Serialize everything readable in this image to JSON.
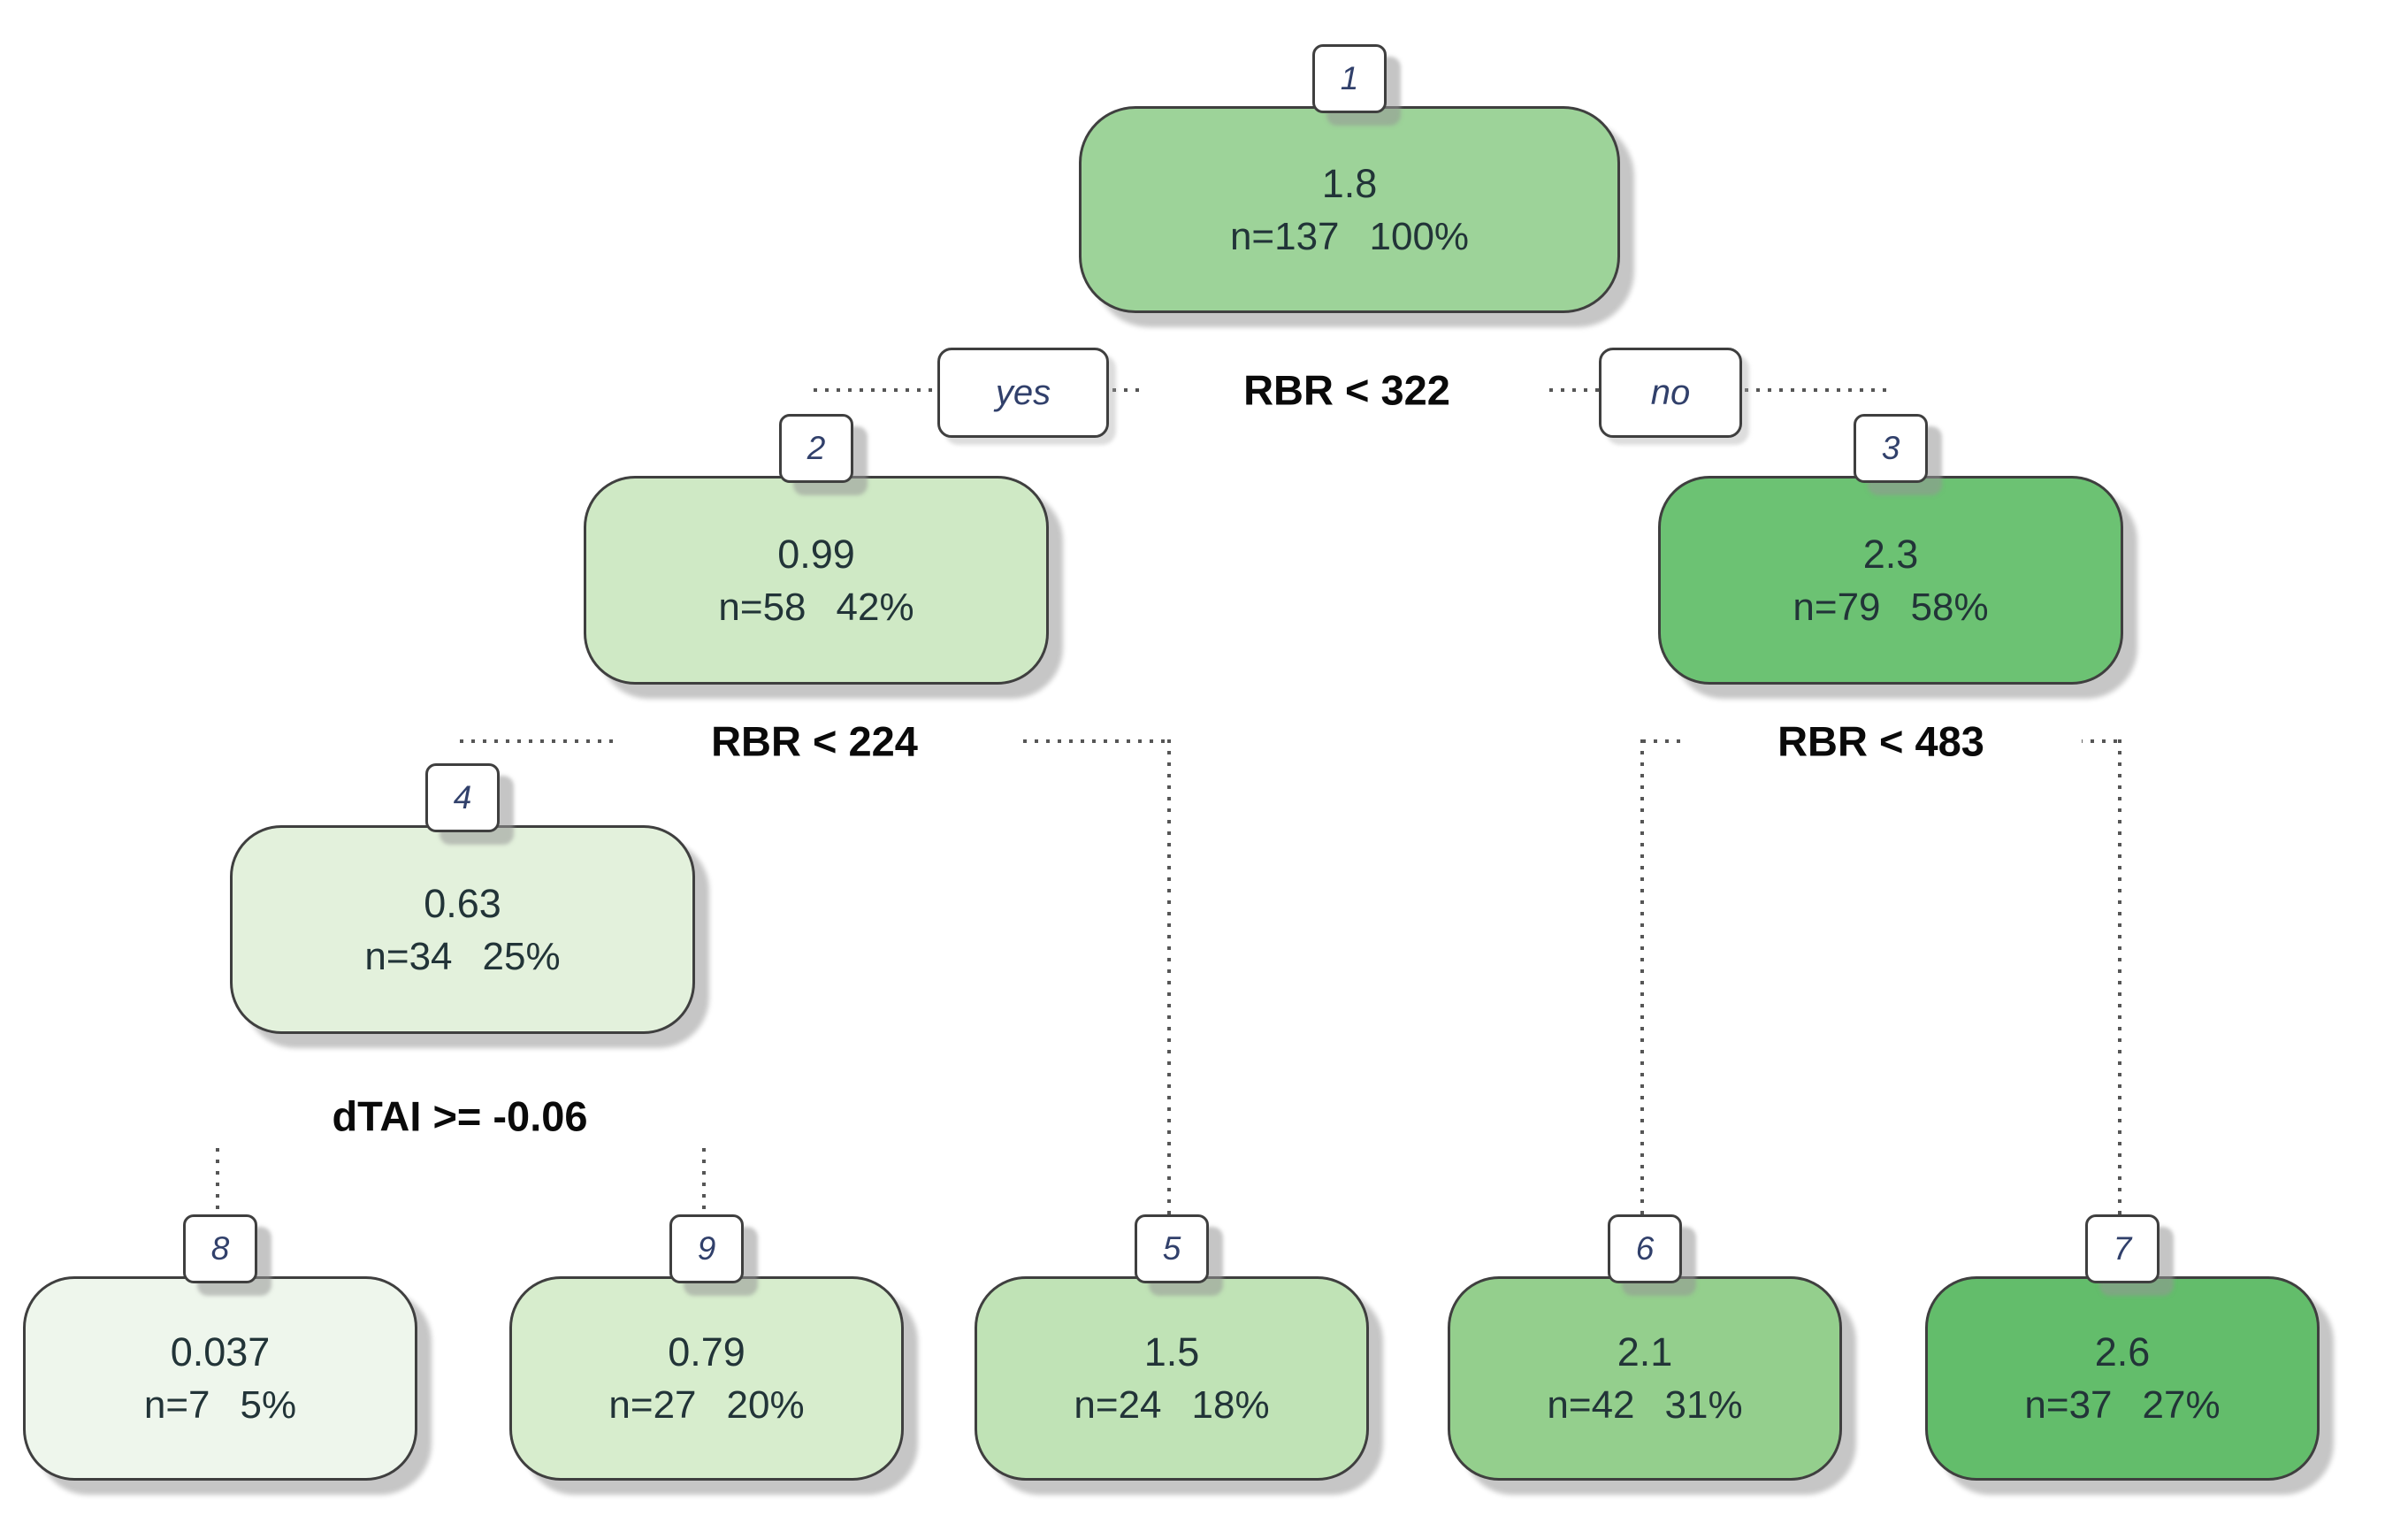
{
  "figure": {
    "type": "regression-tree-plot",
    "background": "#ffffff"
  },
  "branch_labels": {
    "yes": "yes",
    "no": "no"
  },
  "splits": {
    "root": "RBR < 322",
    "left": "RBR < 224",
    "right": "RBR < 483",
    "left_left": "dTAI >= -0.06"
  },
  "structure": {
    "1": {
      "split": "RBR < 322",
      "yes_child": "2",
      "no_child": "3"
    },
    "2": {
      "split": "RBR < 224",
      "yes_child": "4",
      "no_child": "5"
    },
    "3": {
      "split": "RBR < 483",
      "yes_child": "6",
      "no_child": "7"
    },
    "4": {
      "split": "dTAI >= -0.06",
      "yes_child": "8",
      "no_child": "9"
    }
  },
  "nodes": {
    "n1": {
      "id": "1",
      "value": "1.8",
      "n": "n=137",
      "pct": "100%",
      "color": "#9dd399"
    },
    "n2": {
      "id": "2",
      "value": "0.99",
      "n": "n=58",
      "pct": "42%",
      "color": "#cfe9c5"
    },
    "n3": {
      "id": "3",
      "value": "2.3",
      "n": "n=79",
      "pct": "58%",
      "color": "#6cc273"
    },
    "n4": {
      "id": "4",
      "value": "0.63",
      "n": "n=34",
      "pct": "25%",
      "color": "#e3f1dc"
    },
    "n5": {
      "id": "5",
      "value": "1.5",
      "n": "n=24",
      "pct": "18%",
      "color": "#c0e3b6"
    },
    "n6": {
      "id": "6",
      "value": "2.1",
      "n": "n=42",
      "pct": "31%",
      "color": "#94cf8d"
    },
    "n7": {
      "id": "7",
      "value": "2.6",
      "n": "n=37",
      "pct": "27%",
      "color": "#63bd6b"
    },
    "n8": {
      "id": "8",
      "value": "0.037",
      "n": "n=7",
      "pct": "5%",
      "color": "#eef6ec"
    },
    "n9": {
      "id": "9",
      "value": "0.79",
      "n": "n=27",
      "pct": "20%",
      "color": "#d7edcd"
    }
  },
  "palette": {
    "node_border": "#3f3f3f",
    "connector": "#565656",
    "node_text": "#223438",
    "number_text": "#31406b",
    "split_text": "#0a0a0a"
  }
}
